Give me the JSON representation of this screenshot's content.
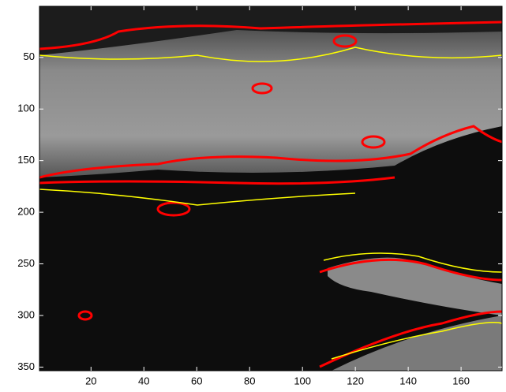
{
  "chart_data": {
    "type": "image",
    "xlim": [
      0.5,
      175.5
    ],
    "ylim": [
      0.5,
      353.5
    ],
    "y_reversed": true,
    "xticks": [
      20,
      40,
      60,
      80,
      100,
      120,
      140,
      160
    ],
    "yticks": [
      50,
      100,
      150,
      200,
      250,
      300,
      350
    ]
  }
}
